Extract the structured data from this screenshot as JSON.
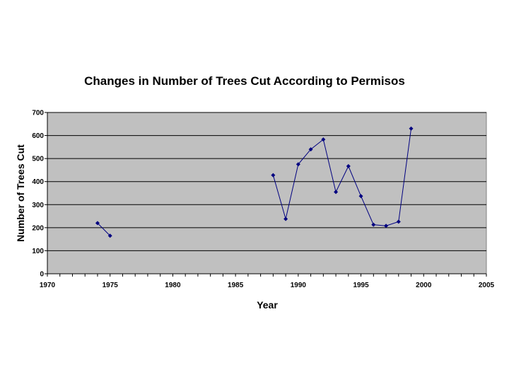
{
  "chart_data": {
    "type": "scatter",
    "title": "Changes in Number of Trees Cut According to Permisos",
    "xlabel": "Year",
    "ylabel": "Number of Trees Cut",
    "xlim": [
      1970,
      2005
    ],
    "ylim": [
      0,
      700
    ],
    "x_ticks": [
      "1970",
      "1975",
      "1980",
      "1985",
      "1990",
      "1995",
      "2000",
      "2005"
    ],
    "y_ticks": [
      "0",
      "100",
      "200",
      "300",
      "400",
      "500",
      "600",
      "700"
    ],
    "grid": "horizontal",
    "legend": "none",
    "plot_background": "#c0c0c0",
    "gridline_color": "#000000",
    "series_color": "#000080",
    "segments": [
      [
        {
          "x": 1974,
          "y": 220
        },
        {
          "x": 1975,
          "y": 165
        }
      ],
      [
        {
          "x": 1988,
          "y": 428
        },
        {
          "x": 1989,
          "y": 238
        },
        {
          "x": 1990,
          "y": 475
        },
        {
          "x": 1991,
          "y": 540
        },
        {
          "x": 1992,
          "y": 583
        },
        {
          "x": 1993,
          "y": 355
        },
        {
          "x": 1994,
          "y": 467
        },
        {
          "x": 1995,
          "y": 337
        },
        {
          "x": 1996,
          "y": 213
        },
        {
          "x": 1997,
          "y": 208
        },
        {
          "x": 1998,
          "y": 226
        },
        {
          "x": 1999,
          "y": 630
        }
      ]
    ]
  }
}
